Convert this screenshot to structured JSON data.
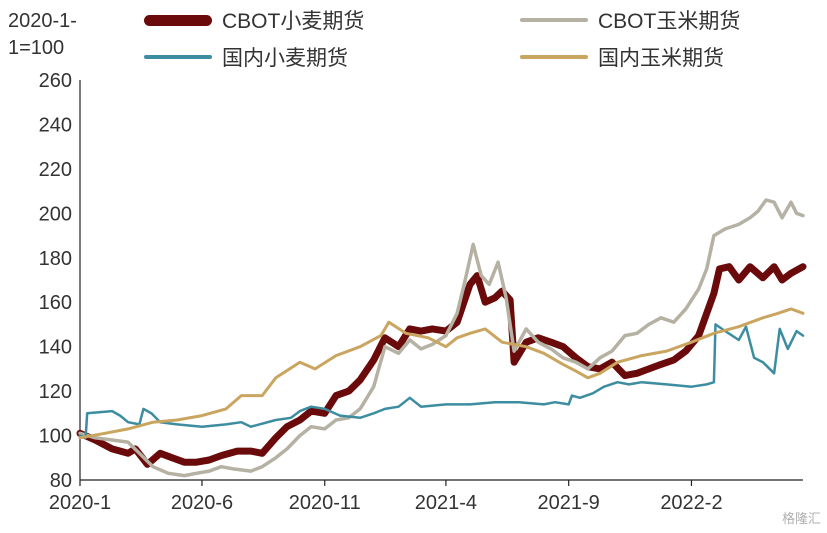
{
  "unit_label": [
    "2020-1-",
    "1=100"
  ],
  "watermark": "格隆汇",
  "chart_data": {
    "type": "line",
    "title": "",
    "xlabel": "",
    "ylabel": "",
    "ylim": [
      80,
      260
    ],
    "yticks": [
      80,
      100,
      120,
      140,
      160,
      180,
      200,
      220,
      240,
      260
    ],
    "xlim": [
      "2020-01-01",
      "2022-06-20"
    ],
    "xticks": [
      "2020-1",
      "2020-6",
      "2020-11",
      "2021-4",
      "2021-9",
      "2022-2"
    ],
    "xtick_dates": [
      "2020-01-01",
      "2020-06-01",
      "2020-11-01",
      "2021-04-01",
      "2021-09-01",
      "2022-02-01"
    ],
    "legend_position": "top",
    "series": [
      {
        "name": "CBOT小麦期货",
        "color": "#6b0a0a",
        "width": 7,
        "points": [
          [
            "2020-01-01",
            101
          ],
          [
            "2020-01-20",
            98
          ],
          [
            "2020-02-10",
            94
          ],
          [
            "2020-03-01",
            92
          ],
          [
            "2020-03-10",
            94
          ],
          [
            "2020-03-25",
            87
          ],
          [
            "2020-04-10",
            92
          ],
          [
            "2020-04-25",
            90
          ],
          [
            "2020-05-10",
            88
          ],
          [
            "2020-05-25",
            88
          ],
          [
            "2020-06-10",
            89
          ],
          [
            "2020-06-25",
            91
          ],
          [
            "2020-07-15",
            93
          ],
          [
            "2020-08-01",
            93
          ],
          [
            "2020-08-15",
            92
          ],
          [
            "2020-09-01",
            99
          ],
          [
            "2020-09-15",
            104
          ],
          [
            "2020-10-01",
            107
          ],
          [
            "2020-10-15",
            111
          ],
          [
            "2020-11-01",
            110
          ],
          [
            "2020-11-15",
            118
          ],
          [
            "2020-12-01",
            120
          ],
          [
            "2020-12-15",
            125
          ],
          [
            "2021-01-01",
            134
          ],
          [
            "2021-01-15",
            144
          ],
          [
            "2021-02-01",
            140
          ],
          [
            "2021-02-15",
            148
          ],
          [
            "2021-03-01",
            147
          ],
          [
            "2021-03-15",
            148
          ],
          [
            "2021-04-01",
            147
          ],
          [
            "2021-04-15",
            151
          ],
          [
            "2021-05-01",
            168
          ],
          [
            "2021-05-10",
            172
          ],
          [
            "2021-05-20",
            160
          ],
          [
            "2021-06-01",
            162
          ],
          [
            "2021-06-10",
            165
          ],
          [
            "2021-06-20",
            161
          ],
          [
            "2021-06-25",
            133
          ],
          [
            "2021-07-10",
            142
          ],
          [
            "2021-07-25",
            144
          ],
          [
            "2021-08-10",
            142
          ],
          [
            "2021-08-25",
            140
          ],
          [
            "2021-09-10",
            135
          ],
          [
            "2021-09-25",
            131
          ],
          [
            "2021-10-10",
            130
          ],
          [
            "2021-10-25",
            133
          ],
          [
            "2021-11-10",
            127
          ],
          [
            "2021-11-25",
            128
          ],
          [
            "2021-12-10",
            130
          ],
          [
            "2021-12-25",
            132
          ],
          [
            "2022-01-10",
            134
          ],
          [
            "2022-01-25",
            138
          ],
          [
            "2022-02-10",
            145
          ],
          [
            "2022-02-20",
            155
          ],
          [
            "2022-03-01",
            164
          ],
          [
            "2022-03-08",
            175
          ],
          [
            "2022-03-20",
            176
          ],
          [
            "2022-04-01",
            170
          ],
          [
            "2022-04-15",
            176
          ],
          [
            "2022-05-01",
            171
          ],
          [
            "2022-05-15",
            176
          ],
          [
            "2022-05-25",
            170
          ],
          [
            "2022-06-05",
            173
          ],
          [
            "2022-06-20",
            176
          ]
        ]
      },
      {
        "name": "CBOT玉米期货",
        "color": "#b5b1a3",
        "width": 3.5,
        "points": [
          [
            "2020-01-01",
            101
          ],
          [
            "2020-01-20",
            99
          ],
          [
            "2020-02-10",
            98
          ],
          [
            "2020-03-01",
            97
          ],
          [
            "2020-03-15",
            92
          ],
          [
            "2020-04-01",
            86
          ],
          [
            "2020-04-20",
            83
          ],
          [
            "2020-05-10",
            82
          ],
          [
            "2020-05-25",
            83
          ],
          [
            "2020-06-10",
            84
          ],
          [
            "2020-06-25",
            86
          ],
          [
            "2020-07-10",
            85
          ],
          [
            "2020-08-01",
            84
          ],
          [
            "2020-08-15",
            86
          ],
          [
            "2020-09-01",
            90
          ],
          [
            "2020-09-15",
            94
          ],
          [
            "2020-10-01",
            100
          ],
          [
            "2020-10-15",
            104
          ],
          [
            "2020-11-01",
            103
          ],
          [
            "2020-11-15",
            107
          ],
          [
            "2020-12-01",
            108
          ],
          [
            "2020-12-15",
            112
          ],
          [
            "2021-01-01",
            122
          ],
          [
            "2021-01-15",
            140
          ],
          [
            "2021-02-01",
            137
          ],
          [
            "2021-02-15",
            143
          ],
          [
            "2021-03-01",
            139
          ],
          [
            "2021-03-15",
            141
          ],
          [
            "2021-04-01",
            145
          ],
          [
            "2021-04-15",
            155
          ],
          [
            "2021-04-25",
            170
          ],
          [
            "2021-05-05",
            186
          ],
          [
            "2021-05-15",
            172
          ],
          [
            "2021-05-25",
            168
          ],
          [
            "2021-06-05",
            178
          ],
          [
            "2021-06-15",
            162
          ],
          [
            "2021-06-25",
            138
          ],
          [
            "2021-07-10",
            148
          ],
          [
            "2021-07-25",
            142
          ],
          [
            "2021-08-10",
            139
          ],
          [
            "2021-08-25",
            135
          ],
          [
            "2021-09-10",
            133
          ],
          [
            "2021-09-25",
            130
          ],
          [
            "2021-10-10",
            135
          ],
          [
            "2021-10-25",
            138
          ],
          [
            "2021-11-10",
            145
          ],
          [
            "2021-11-25",
            146
          ],
          [
            "2021-12-10",
            150
          ],
          [
            "2021-12-25",
            153
          ],
          [
            "2022-01-10",
            151
          ],
          [
            "2022-01-25",
            157
          ],
          [
            "2022-02-10",
            166
          ],
          [
            "2022-02-20",
            175
          ],
          [
            "2022-03-01",
            190
          ],
          [
            "2022-03-15",
            193
          ],
          [
            "2022-04-01",
            195
          ],
          [
            "2022-04-15",
            198
          ],
          [
            "2022-04-25",
            201
          ],
          [
            "2022-05-05",
            206
          ],
          [
            "2022-05-15",
            205
          ],
          [
            "2022-05-25",
            198
          ],
          [
            "2022-06-05",
            205
          ],
          [
            "2022-06-12",
            200
          ],
          [
            "2022-06-20",
            199
          ]
        ]
      },
      {
        "name": "国内小麦期货",
        "color": "#3d8da1",
        "width": 2.5,
        "points": [
          [
            "2020-01-01",
            100
          ],
          [
            "2020-01-08",
            99
          ],
          [
            "2020-01-10",
            110
          ],
          [
            "2020-02-10",
            111
          ],
          [
            "2020-02-20",
            109
          ],
          [
            "2020-03-01",
            106
          ],
          [
            "2020-03-15",
            105
          ],
          [
            "2020-03-20",
            112
          ],
          [
            "2020-03-30",
            110
          ],
          [
            "2020-04-10",
            106
          ],
          [
            "2020-05-01",
            105
          ],
          [
            "2020-06-01",
            104
          ],
          [
            "2020-07-01",
            105
          ],
          [
            "2020-07-20",
            106
          ],
          [
            "2020-08-01",
            104
          ],
          [
            "2020-09-01",
            107
          ],
          [
            "2020-09-20",
            108
          ],
          [
            "2020-10-01",
            111
          ],
          [
            "2020-10-15",
            113
          ],
          [
            "2020-11-01",
            112
          ],
          [
            "2020-11-20",
            109
          ],
          [
            "2020-12-15",
            108
          ],
          [
            "2021-01-01",
            110
          ],
          [
            "2021-01-15",
            112
          ],
          [
            "2021-02-01",
            113
          ],
          [
            "2021-02-15",
            117
          ],
          [
            "2021-03-01",
            113
          ],
          [
            "2021-04-01",
            114
          ],
          [
            "2021-05-01",
            114
          ],
          [
            "2021-06-01",
            115
          ],
          [
            "2021-07-01",
            115
          ],
          [
            "2021-08-01",
            114
          ],
          [
            "2021-08-15",
            115
          ],
          [
            "2021-09-01",
            114
          ],
          [
            "2021-09-05",
            118
          ],
          [
            "2021-09-15",
            117
          ],
          [
            "2021-10-01",
            119
          ],
          [
            "2021-10-15",
            122
          ],
          [
            "2021-11-01",
            124
          ],
          [
            "2021-11-15",
            123
          ],
          [
            "2021-12-01",
            124
          ],
          [
            "2022-01-01",
            123
          ],
          [
            "2022-02-01",
            122
          ],
          [
            "2022-02-20",
            123
          ],
          [
            "2022-03-01",
            124
          ],
          [
            "2022-03-03",
            150
          ],
          [
            "2022-03-15",
            147
          ],
          [
            "2022-04-01",
            143
          ],
          [
            "2022-04-10",
            149
          ],
          [
            "2022-04-20",
            135
          ],
          [
            "2022-05-01",
            133
          ],
          [
            "2022-05-15",
            128
          ],
          [
            "2022-05-22",
            148
          ],
          [
            "2022-06-01",
            139
          ],
          [
            "2022-06-12",
            147
          ],
          [
            "2022-06-20",
            145
          ]
        ]
      },
      {
        "name": "国内玉米期货",
        "color": "#c9a560",
        "width": 3,
        "points": [
          [
            "2020-01-01",
            99
          ],
          [
            "2020-02-01",
            101
          ],
          [
            "2020-03-01",
            103
          ],
          [
            "2020-04-01",
            106
          ],
          [
            "2020-05-01",
            107
          ],
          [
            "2020-06-01",
            109
          ],
          [
            "2020-07-01",
            112
          ],
          [
            "2020-07-20",
            118
          ],
          [
            "2020-08-15",
            118
          ],
          [
            "2020-09-01",
            126
          ],
          [
            "2020-10-01",
            133
          ],
          [
            "2020-10-20",
            130
          ],
          [
            "2020-11-15",
            136
          ],
          [
            "2020-12-15",
            140
          ],
          [
            "2021-01-10",
            145
          ],
          [
            "2021-01-20",
            151
          ],
          [
            "2021-02-10",
            146
          ],
          [
            "2021-03-10",
            144
          ],
          [
            "2021-04-01",
            140
          ],
          [
            "2021-04-15",
            144
          ],
          [
            "2021-05-01",
            146
          ],
          [
            "2021-05-20",
            148
          ],
          [
            "2021-06-10",
            142
          ],
          [
            "2021-07-10",
            140
          ],
          [
            "2021-08-01",
            137
          ],
          [
            "2021-08-25",
            132
          ],
          [
            "2021-09-10",
            129
          ],
          [
            "2021-09-25",
            126
          ],
          [
            "2021-10-10",
            128
          ],
          [
            "2021-11-01",
            133
          ],
          [
            "2021-12-01",
            136
          ],
          [
            "2022-01-01",
            138
          ],
          [
            "2022-02-01",
            142
          ],
          [
            "2022-03-01",
            146
          ],
          [
            "2022-04-01",
            149
          ],
          [
            "2022-05-01",
            153
          ],
          [
            "2022-05-20",
            155
          ],
          [
            "2022-06-05",
            157
          ],
          [
            "2022-06-20",
            155
          ]
        ]
      }
    ]
  }
}
